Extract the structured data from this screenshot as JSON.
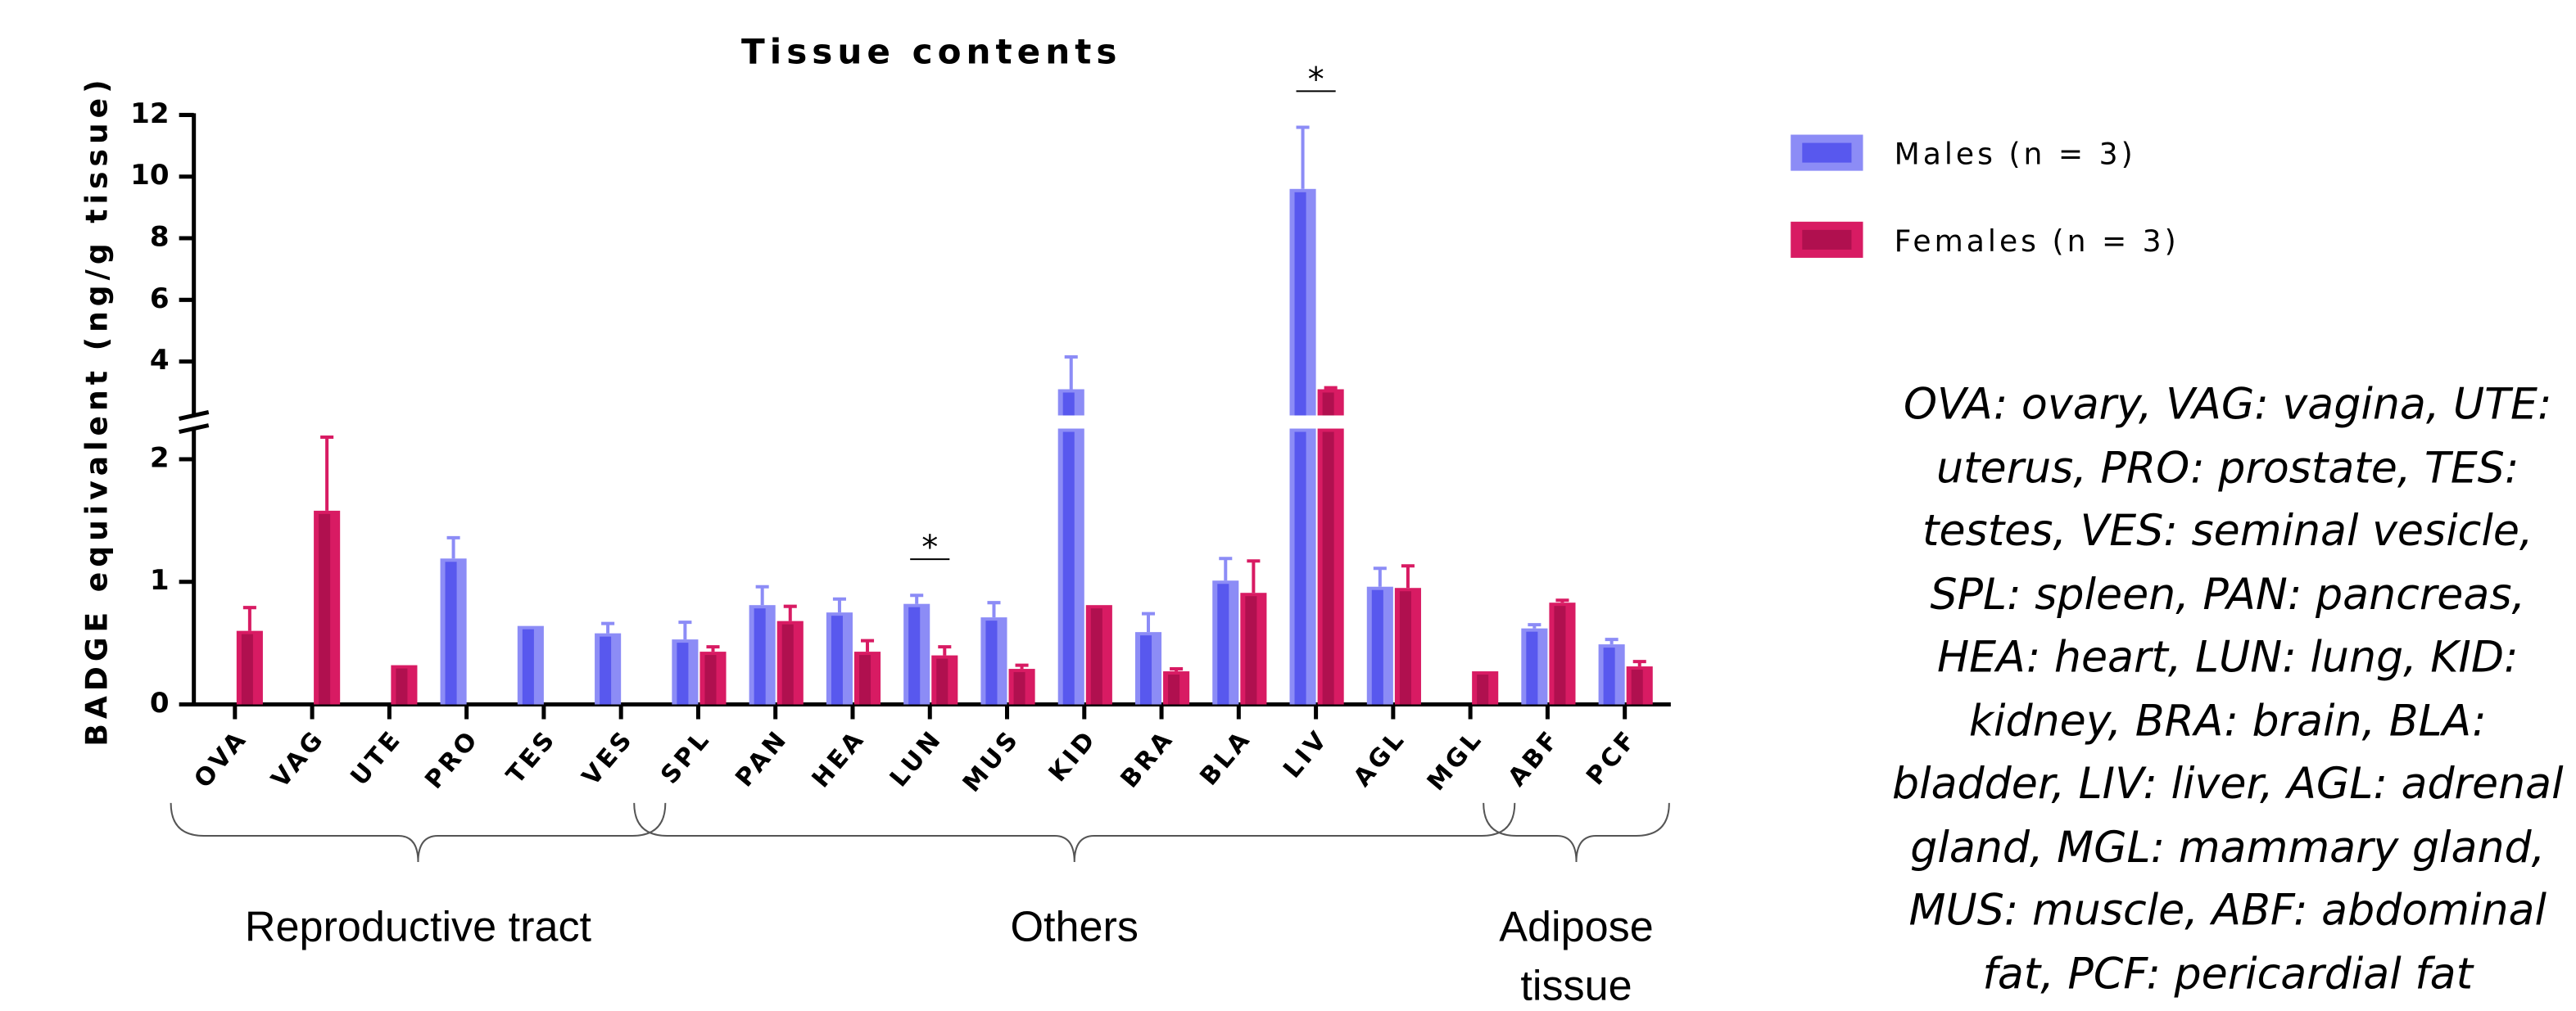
{
  "chart_data": {
    "type": "bar",
    "title": "Tissue contents",
    "y_label": "BADGE equivalent (ng/g tissue)",
    "categories": [
      "OVA",
      "VAG",
      "UTE",
      "PRO",
      "TES",
      "VES",
      "SPL",
      "PAN",
      "HEA",
      "LUN",
      "MUS",
      "KID",
      "BRA",
      "BLA",
      "LIV",
      "AGL",
      "MGL",
      "ABF",
      "PCF"
    ],
    "series": [
      {
        "name": "Males (n = 3)",
        "color": "#8c8cf6",
        "inner_color": "#5858ee",
        "values": [
          null,
          null,
          null,
          1.19,
          0.64,
          0.58,
          0.53,
          0.81,
          0.75,
          0.82,
          0.71,
          3.1,
          0.59,
          1.01,
          9.6,
          0.96,
          null,
          0.62,
          0.49
        ],
        "errors": [
          null,
          null,
          null,
          0.17,
          null,
          0.08,
          0.14,
          0.15,
          0.11,
          0.07,
          0.12,
          1.05,
          0.15,
          0.18,
          2.0,
          0.15,
          null,
          0.03,
          0.04
        ]
      },
      {
        "name": "Females (n = 3)",
        "color": "#d81b63",
        "inner_color": "#b0104f",
        "values": [
          0.6,
          1.58,
          0.32,
          null,
          null,
          null,
          0.43,
          0.68,
          0.43,
          0.4,
          0.29,
          0.81,
          0.27,
          0.91,
          3.1,
          0.95,
          0.27,
          0.83,
          0.31
        ],
        "errors": [
          0.19,
          0.6,
          null,
          null,
          null,
          null,
          0.04,
          0.12,
          0.09,
          0.07,
          0.03,
          null,
          0.02,
          0.26,
          0.05,
          0.18,
          null,
          0.02,
          0.04
        ]
      }
    ],
    "y_segments": [
      {
        "ylim": [
          0,
          2.25
        ],
        "yticks": [
          0,
          1,
          2
        ]
      },
      {
        "ylim": [
          2.25,
          12
        ],
        "yticks": [
          4,
          6,
          8,
          10,
          12
        ]
      }
    ],
    "significance": [
      {
        "text": "*",
        "category": "LUN"
      },
      {
        "text": "*",
        "category": "LIV"
      }
    ],
    "groups": [
      {
        "label": "Reproductive tract",
        "from": "OVA",
        "to": "VES"
      },
      {
        "label": "Others",
        "from": "SPL",
        "to": "MGL"
      },
      {
        "label": "Adipose tissue",
        "from": "ABF",
        "to": "PCF"
      }
    ],
    "footnote": "OVA: ovary, VAG: vagina, UTE: uterus, PRO: prostate, TES: testes, VES: seminal vesicle, SPL: spleen, PAN: pancreas, HEA: heart, LUN: lung, KID: kidney, BRA: brain, BLA: bladder, LIV: liver, AGL: adrenal gland, MGL: mammary gland, MUS: muscle, ABF: abdominal fat, PCF: pericardial fat"
  }
}
